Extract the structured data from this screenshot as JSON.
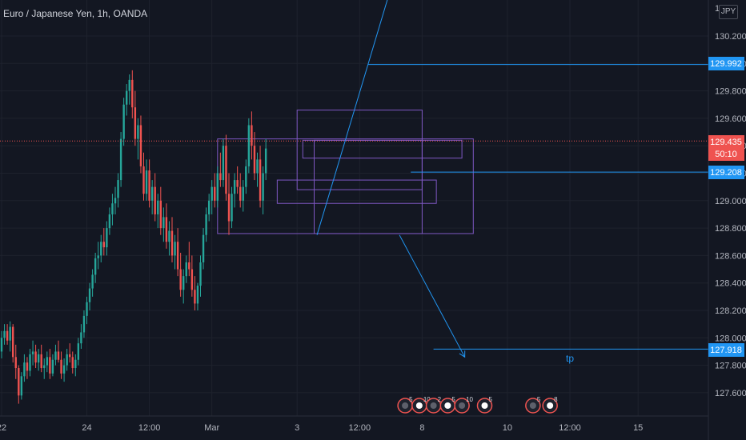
{
  "header": {
    "symbol": "Euro / Japanese Yen",
    "separator1": ", ",
    "interval": "1h",
    "separator2": ", ",
    "broker": "OANDA"
  },
  "currency_badge": "JPY",
  "price_tags": {
    "upper_line": "129.992",
    "current_price": "129.435",
    "countdown": "50:10",
    "lower_line": "129.208",
    "target_line": "127.918"
  },
  "annotations": {
    "tp_label": "tp"
  },
  "top_partial_label": "1 70",
  "colors": {
    "background": "#131722",
    "up": "#26a69a",
    "down": "#ef5350",
    "line": "#2196f3",
    "box": "#7e57c2",
    "grid": "#1e222d"
  },
  "chart_data": {
    "type": "candlestick",
    "title": "Euro / Japanese Yen, 1h, OANDA",
    "ylim": [
      127.45,
      130.5
    ],
    "y_ticks": [
      "130.200",
      "130.000",
      "129.800",
      "129.600",
      "129.400",
      "129.200",
      "129.000",
      "128.800",
      "128.600",
      "128.400",
      "128.200",
      "128.000",
      "127.800",
      "127.600"
    ],
    "x_ticks": [
      {
        "label": "22",
        "bar": 0
      },
      {
        "label": "24",
        "bar": 30
      },
      {
        "label": "12:00",
        "bar": 52
      },
      {
        "label": "Mar",
        "bar": 74
      },
      {
        "label": "3",
        "bar": 104
      },
      {
        "label": "12:00",
        "bar": 126
      },
      {
        "label": "8",
        "bar": 148
      },
      {
        "label": "10",
        "bar": 178
      },
      {
        "label": "12:00",
        "bar": 200
      },
      {
        "label": "15",
        "bar": 224
      }
    ],
    "events_bars": [
      142,
      147,
      152,
      157,
      162,
      170,
      187,
      193
    ],
    "event_badges": [
      "5",
      "10",
      "2",
      "5",
      "10",
      "5",
      "5",
      "8"
    ],
    "trend_line": {
      "from": [
        111,
        128.75
      ],
      "to": [
        137,
        130.55
      ]
    },
    "tp_arrow": {
      "from": [
        140,
        128.75
      ],
      "to": [
        163,
        127.86
      ]
    },
    "horizontal_levels": [
      {
        "value": 129.992,
        "from_bar": 129
      },
      {
        "value": 129.208,
        "from_bar": 144
      },
      {
        "value": 127.918,
        "from_bar": 152
      }
    ],
    "current_price": 129.435,
    "boxes": [
      {
        "x1": 76,
        "x2": 166,
        "y1": 128.76,
        "y2": 129.45
      },
      {
        "x1": 104,
        "x2": 148,
        "y1": 129.08,
        "y2": 129.66
      },
      {
        "x1": 106,
        "x2": 162,
        "y1": 129.31,
        "y2": 129.44
      },
      {
        "x1": 97,
        "x2": 153,
        "y1": 128.98,
        "y2": 129.15
      },
      {
        "x1": 110,
        "x2": 148,
        "y1": 128.76,
        "y2": 129.44
      }
    ],
    "ohlc": [
      [
        127.9,
        128.05,
        127.85,
        128.0
      ],
      [
        128.0,
        128.1,
        127.95,
        128.05
      ],
      [
        128.05,
        128.1,
        127.95,
        127.98
      ],
      [
        127.98,
        128.12,
        127.9,
        128.08
      ],
      [
        128.08,
        128.1,
        127.82,
        127.86
      ],
      [
        127.86,
        127.95,
        127.7,
        127.78
      ],
      [
        127.78,
        127.8,
        127.52,
        127.58
      ],
      [
        127.58,
        127.75,
        127.55,
        127.72
      ],
      [
        127.72,
        127.88,
        127.68,
        127.82
      ],
      [
        127.82,
        127.86,
        127.7,
        127.76
      ],
      [
        127.76,
        127.92,
        127.72,
        127.88
      ],
      [
        127.88,
        127.98,
        127.8,
        127.9
      ],
      [
        127.9,
        127.95,
        127.78,
        127.82
      ],
      [
        127.82,
        127.92,
        127.76,
        127.88
      ],
      [
        127.88,
        127.95,
        127.75,
        127.78
      ],
      [
        127.78,
        127.85,
        127.7,
        127.8
      ],
      [
        127.8,
        127.9,
        127.75,
        127.86
      ],
      [
        127.86,
        127.92,
        127.7,
        127.74
      ],
      [
        127.74,
        127.88,
        127.72,
        127.84
      ],
      [
        127.84,
        127.95,
        127.8,
        127.9
      ],
      [
        127.9,
        127.98,
        127.82,
        127.84
      ],
      [
        127.84,
        127.9,
        127.7,
        127.74
      ],
      [
        127.74,
        127.85,
        127.68,
        127.8
      ],
      [
        127.8,
        127.92,
        127.76,
        127.88
      ],
      [
        127.88,
        127.96,
        127.82,
        127.86
      ],
      [
        127.86,
        127.9,
        127.74,
        127.78
      ],
      [
        127.78,
        127.88,
        127.72,
        127.84
      ],
      [
        127.84,
        128.0,
        127.8,
        127.96
      ],
      [
        127.96,
        128.1,
        127.92,
        128.04
      ],
      [
        128.04,
        128.2,
        128.0,
        128.16
      ],
      [
        128.16,
        128.3,
        128.1,
        128.26
      ],
      [
        128.26,
        128.4,
        128.2,
        128.36
      ],
      [
        128.36,
        128.5,
        128.3,
        128.46
      ],
      [
        128.46,
        128.62,
        128.4,
        128.58
      ],
      [
        128.58,
        128.7,
        128.5,
        128.6
      ],
      [
        128.6,
        128.75,
        128.55,
        128.7
      ],
      [
        128.7,
        128.8,
        128.6,
        128.66
      ],
      [
        128.66,
        128.85,
        128.6,
        128.8
      ],
      [
        128.8,
        128.95,
        128.75,
        128.9
      ],
      [
        128.9,
        129.05,
        128.82,
        128.98
      ],
      [
        128.98,
        129.1,
        128.9,
        129.02
      ],
      [
        129.02,
        129.2,
        128.95,
        129.15
      ],
      [
        129.15,
        129.5,
        129.1,
        129.45
      ],
      [
        129.45,
        129.75,
        129.4,
        129.7
      ],
      [
        129.7,
        129.85,
        129.62,
        129.8
      ],
      [
        129.8,
        129.92,
        129.7,
        129.88
      ],
      [
        129.88,
        129.95,
        129.6,
        129.68
      ],
      [
        129.68,
        129.8,
        129.4,
        129.45
      ],
      [
        129.45,
        129.6,
        129.3,
        129.55
      ],
      [
        129.55,
        129.62,
        129.2,
        129.25
      ],
      [
        129.25,
        129.35,
        129.0,
        129.05
      ],
      [
        129.05,
        129.3,
        129.0,
        129.22
      ],
      [
        129.22,
        129.3,
        128.95,
        129.0
      ],
      [
        129.0,
        129.15,
        128.9,
        129.1
      ],
      [
        129.1,
        129.2,
        128.85,
        128.9
      ],
      [
        128.9,
        129.05,
        128.8,
        129.0
      ],
      [
        129.0,
        129.1,
        128.75,
        128.8
      ],
      [
        128.8,
        128.95,
        128.7,
        128.88
      ],
      [
        128.88,
        128.98,
        128.65,
        128.7
      ],
      [
        128.7,
        128.85,
        128.6,
        128.78
      ],
      [
        128.78,
        128.88,
        128.55,
        128.6
      ],
      [
        128.6,
        128.75,
        128.5,
        128.7
      ],
      [
        128.7,
        128.8,
        128.45,
        128.5
      ],
      [
        128.5,
        128.62,
        128.3,
        128.35
      ],
      [
        128.35,
        128.5,
        128.25,
        128.45
      ],
      [
        128.45,
        128.6,
        128.4,
        128.55
      ],
      [
        128.55,
        128.7,
        128.45,
        128.5
      ],
      [
        128.5,
        128.6,
        128.3,
        128.35
      ],
      [
        128.35,
        128.45,
        128.2,
        128.25
      ],
      [
        128.25,
        128.4,
        128.2,
        128.38
      ],
      [
        128.38,
        128.6,
        128.3,
        128.55
      ],
      [
        128.55,
        128.8,
        128.5,
        128.75
      ],
      [
        128.75,
        128.95,
        128.7,
        128.9
      ],
      [
        128.9,
        129.05,
        128.85,
        129.0
      ],
      [
        129.0,
        129.15,
        128.9,
        129.1
      ],
      [
        129.1,
        129.2,
        128.95,
        129.0
      ],
      [
        129.0,
        129.25,
        128.95,
        129.2
      ],
      [
        129.2,
        129.35,
        129.1,
        129.15
      ],
      [
        129.15,
        129.45,
        129.1,
        129.4
      ],
      [
        129.4,
        129.48,
        129.0,
        129.05
      ],
      [
        129.05,
        129.2,
        128.75,
        128.85
      ],
      [
        128.85,
        129.1,
        128.8,
        129.05
      ],
      [
        129.05,
        129.2,
        128.95,
        129.15
      ],
      [
        129.15,
        129.25,
        129.05,
        129.1
      ],
      [
        129.1,
        129.2,
        128.95,
        129.0
      ],
      [
        129.0,
        129.15,
        128.92,
        129.1
      ],
      [
        129.1,
        129.3,
        129.05,
        129.25
      ],
      [
        129.25,
        129.6,
        129.2,
        129.55
      ],
      [
        129.55,
        129.65,
        129.3,
        129.4
      ],
      [
        129.4,
        129.5,
        129.15,
        129.2
      ],
      [
        129.2,
        129.35,
        129.1,
        129.3
      ],
      [
        129.3,
        129.4,
        128.95,
        129.0
      ],
      [
        129.0,
        129.25,
        128.9,
        129.2
      ],
      [
        129.2,
        129.45,
        129.15,
        129.38
      ]
    ]
  }
}
